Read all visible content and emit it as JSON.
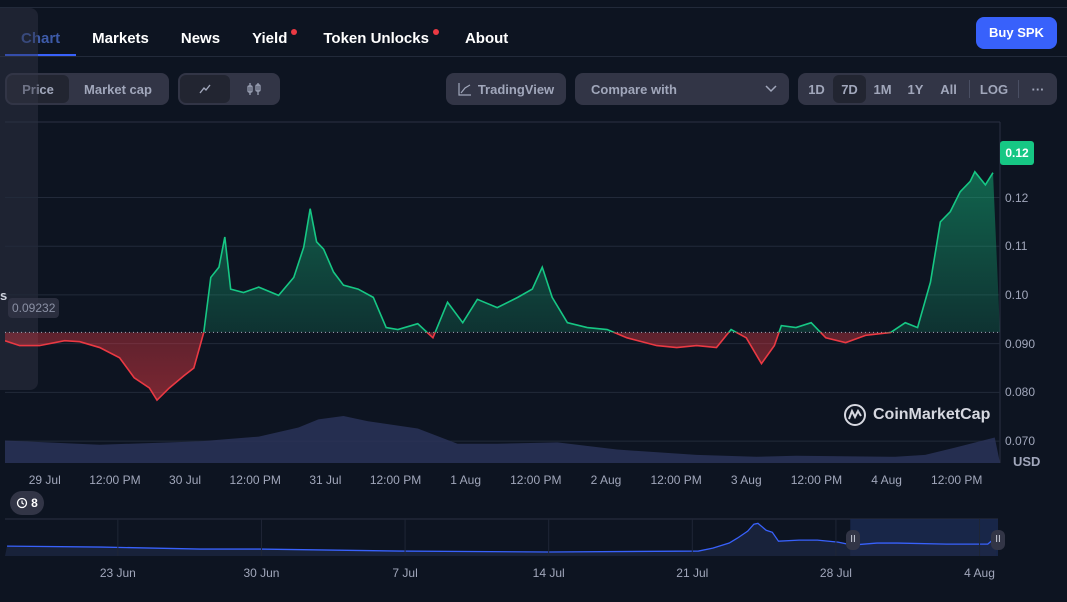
{
  "tabs": [
    {
      "label": "Chart",
      "active": true
    },
    {
      "label": "Markets"
    },
    {
      "label": "News"
    },
    {
      "label": "Yield",
      "dot": true
    },
    {
      "label": "Token Unlocks",
      "dot": true
    },
    {
      "label": "About"
    }
  ],
  "buy_button": "Buy SPK",
  "type_toggle": {
    "price": "Price",
    "market_cap": "Market cap",
    "selected": "Price"
  },
  "chart_style": {
    "line_icon": "line-chart-icon",
    "candle_icon": "candlestick-icon",
    "selected": "line"
  },
  "tradingview": "TradingView",
  "compare": {
    "placeholder": "Compare with"
  },
  "ranges": [
    "1D",
    "7D",
    "1M",
    "1Y",
    "All"
  ],
  "selected_range": "7D",
  "log": "LOG",
  "more": "···",
  "overlay_fragment": "s",
  "base_price_label": "0.09232",
  "current_price_label": "0.12",
  "currency": "USD",
  "events_count": "8",
  "watermark": "CoinMarketCap",
  "colors": {
    "up": "#16c784",
    "down": "#ea3943",
    "accent": "#3861fb",
    "bg": "#0d1421"
  },
  "chart_data": {
    "type": "line",
    "x_unit": "hours since 29 Jul 00:00",
    "y_ticks": [
      "0.12",
      "0.11",
      "0.10",
      "0.090",
      "0.080",
      "0.070"
    ],
    "y_tick_values": [
      0.12,
      0.11,
      0.1,
      0.09,
      0.08,
      0.07
    ],
    "ylim": [
      0.0655,
      0.1355
    ],
    "xlim": [
      -6.8,
      163.4
    ],
    "baseline": 0.09232,
    "x_ticks": [
      {
        "t": 0,
        "label": "29 Jul"
      },
      {
        "t": 12,
        "label": "12:00 PM"
      },
      {
        "t": 24,
        "label": "30 Jul"
      },
      {
        "t": 36,
        "label": "12:00 PM"
      },
      {
        "t": 48,
        "label": "31 Jul"
      },
      {
        "t": 60,
        "label": "12:00 PM"
      },
      {
        "t": 72,
        "label": "1 Aug"
      },
      {
        "t": 84,
        "label": "12:00 PM"
      },
      {
        "t": 96,
        "label": "2 Aug"
      },
      {
        "t": 108,
        "label": "12:00 PM"
      },
      {
        "t": 120,
        "label": "3 Aug"
      },
      {
        "t": 132,
        "label": "12:00 PM"
      },
      {
        "t": 144,
        "label": "4 Aug"
      },
      {
        "t": 156,
        "label": "12:00 PM"
      }
    ],
    "price": [
      [
        -6.8,
        0.0906
      ],
      [
        -4.3,
        0.0896
      ],
      [
        -0.9,
        0.0896
      ],
      [
        3.4,
        0.0906
      ],
      [
        6,
        0.0904
      ],
      [
        9.4,
        0.0892
      ],
      [
        12.8,
        0.0871
      ],
      [
        15.3,
        0.083
      ],
      [
        17.9,
        0.0809
      ],
      [
        19.2,
        0.0784
      ],
      [
        21.3,
        0.0809
      ],
      [
        23.8,
        0.0834
      ],
      [
        25.5,
        0.085
      ],
      [
        27.2,
        0.0923
      ],
      [
        28.4,
        0.1036
      ],
      [
        29.8,
        0.1057
      ],
      [
        30.8,
        0.1119
      ],
      [
        31.8,
        0.1012
      ],
      [
        34,
        0.1005
      ],
      [
        36.6,
        0.1016
      ],
      [
        40,
        0.0999
      ],
      [
        42.6,
        0.1036
      ],
      [
        44.3,
        0.1098
      ],
      [
        45.4,
        0.1177
      ],
      [
        46.5,
        0.1109
      ],
      [
        47.7,
        0.1094
      ],
      [
        49.4,
        0.1047
      ],
      [
        51.1,
        0.102
      ],
      [
        53.6,
        0.1012
      ],
      [
        56.2,
        0.0995
      ],
      [
        58.4,
        0.0933
      ],
      [
        60.4,
        0.0929
      ],
      [
        63.8,
        0.0941
      ],
      [
        66.4,
        0.0912
      ],
      [
        68.9,
        0.0985
      ],
      [
        71.5,
        0.0943
      ],
      [
        74,
        0.0991
      ],
      [
        77.4,
        0.0974
      ],
      [
        80.9,
        0.0995
      ],
      [
        83.4,
        0.1012
      ],
      [
        85.1,
        0.1057
      ],
      [
        86.8,
        0.0995
      ],
      [
        89.4,
        0.0943
      ],
      [
        92.8,
        0.0933
      ],
      [
        96.2,
        0.0929
      ],
      [
        99.6,
        0.0912
      ],
      [
        104.7,
        0.0896
      ],
      [
        108.1,
        0.0892
      ],
      [
        111.5,
        0.0896
      ],
      [
        114.9,
        0.0892
      ],
      [
        117.4,
        0.0929
      ],
      [
        120,
        0.0912
      ],
      [
        122.6,
        0.0859
      ],
      [
        124.8,
        0.0896
      ],
      [
        126,
        0.0937
      ],
      [
        128.5,
        0.0933
      ],
      [
        131.1,
        0.0943
      ],
      [
        133.6,
        0.0912
      ],
      [
        137,
        0.0902
      ],
      [
        140.4,
        0.0917
      ],
      [
        144.7,
        0.0923
      ],
      [
        147.2,
        0.0943
      ],
      [
        149.3,
        0.0933
      ],
      [
        151.5,
        0.1026
      ],
      [
        153.2,
        0.115
      ],
      [
        154.9,
        0.1171
      ],
      [
        156.6,
        0.1212
      ],
      [
        158.3,
        0.1233
      ],
      [
        159.1,
        0.1253
      ],
      [
        160.9,
        0.1226
      ],
      [
        162.2,
        0.1251
      ]
    ],
    "volume_relative": [
      [
        -6.8,
        0.47
      ],
      [
        9.4,
        0.38
      ],
      [
        26.4,
        0.45
      ],
      [
        36.6,
        0.55
      ],
      [
        43.4,
        0.74
      ],
      [
        46.8,
        0.91
      ],
      [
        51.1,
        0.98
      ],
      [
        55.3,
        0.87
      ],
      [
        63.8,
        0.72
      ],
      [
        70.6,
        0.4
      ],
      [
        77.4,
        0.4
      ],
      [
        87.7,
        0.43
      ],
      [
        97.9,
        0.28
      ],
      [
        111.5,
        0.17
      ],
      [
        121.7,
        0.13
      ],
      [
        128.5,
        0.15
      ],
      [
        145.5,
        0.13
      ],
      [
        150.6,
        0.17
      ],
      [
        155.7,
        0.32
      ],
      [
        162.5,
        0.53
      ]
    ]
  },
  "navigator": {
    "x_unit": "days since 23 Jun",
    "xlim": [
      -5.5,
      42.9
    ],
    "x_ticks": [
      {
        "t": 0,
        "label": "23 Jun"
      },
      {
        "t": 7,
        "label": "30 Jun"
      },
      {
        "t": 14,
        "label": "7 Jul"
      },
      {
        "t": 21,
        "label": "14 Jul"
      },
      {
        "t": 28,
        "label": "21 Jul"
      },
      {
        "t": 35,
        "label": "28 Jul"
      },
      {
        "t": 42,
        "label": "4 Aug"
      }
    ],
    "selection": [
      35.7,
      42.9
    ],
    "ylim": [
      0,
      0.24
    ],
    "price": [
      [
        -5.4,
        0.064
      ],
      [
        -0.8,
        0.058
      ],
      [
        4,
        0.045
      ],
      [
        6.9,
        0.045
      ],
      [
        13.7,
        0.032
      ],
      [
        21,
        0.026
      ],
      [
        28.3,
        0.032
      ],
      [
        29,
        0.051
      ],
      [
        29.8,
        0.084
      ],
      [
        30.2,
        0.116
      ],
      [
        30.7,
        0.161
      ],
      [
        31,
        0.206
      ],
      [
        31.2,
        0.212
      ],
      [
        31.6,
        0.167
      ],
      [
        31.9,
        0.154
      ],
      [
        32.2,
        0.096
      ],
      [
        33.2,
        0.103
      ],
      [
        34.1,
        0.103
      ],
      [
        35.1,
        0.09
      ],
      [
        35.8,
        0.071
      ],
      [
        37,
        0.084
      ],
      [
        38,
        0.084
      ],
      [
        40.4,
        0.077
      ],
      [
        42.4,
        0.077
      ],
      [
        42.8,
        0.122
      ]
    ]
  }
}
